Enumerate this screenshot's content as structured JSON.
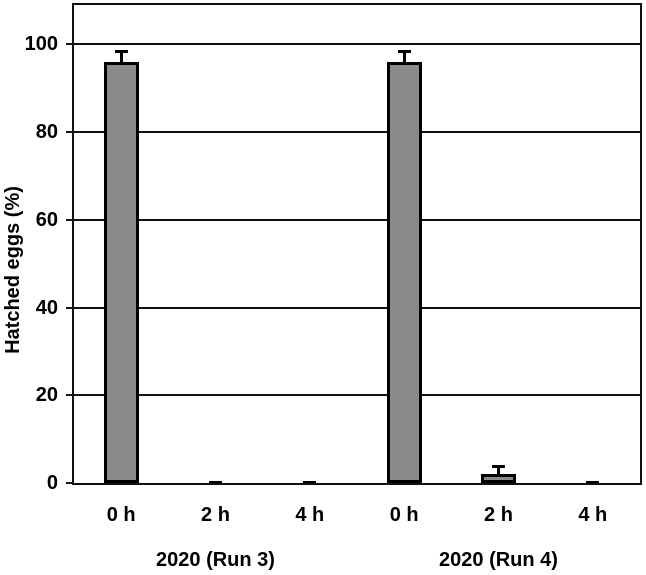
{
  "chart_data": {
    "type": "bar",
    "title": "",
    "ylabel": "Hatched eggs (%)",
    "xlabel": "",
    "ylim": [
      0,
      109
    ],
    "yticks": [
      0,
      20,
      40,
      60,
      80,
      100
    ],
    "grid": true,
    "legend": false,
    "bar_fill_color": "#8a8a8a",
    "bar_border_color": "#000000",
    "axis_color": "#111111",
    "background_color": "#ffffff",
    "groups": [
      {
        "label": "2020 (Run 3)",
        "bars": [
          {
            "label": "0 h",
            "value": 96,
            "error": 2.5
          },
          {
            "label": "2 h",
            "value": 0.3,
            "error": 0
          },
          {
            "label": "4 h",
            "value": 0.3,
            "error": 0
          }
        ]
      },
      {
        "label": "2020 (Run 4)",
        "bars": [
          {
            "label": "0 h",
            "value": 96,
            "error": 2.5
          },
          {
            "label": "2 h",
            "value": 2,
            "error": 1.8
          },
          {
            "label": "4 h",
            "value": 0.3,
            "error": 0
          }
        ]
      }
    ]
  }
}
